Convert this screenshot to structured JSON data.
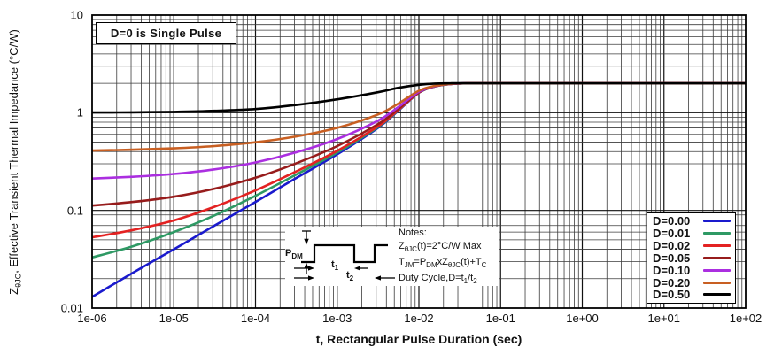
{
  "annotation": "D=0 is Single Pulse",
  "x_axis": {
    "title": "t, Rectangular Pulse Duration (sec)",
    "ticks": [
      "1e-06",
      "1e-05",
      "1e-04",
      "1e-03",
      "1e-02",
      "1e-01",
      "1e+00",
      "1e+01",
      "1e+02"
    ]
  },
  "y_axis": {
    "title_main": "Z",
    "title_sub": "θJC",
    "title_rest": ", Effective Transient Thermal Impedance (°C/W)",
    "ticks": [
      "10",
      "1",
      "0.1",
      "0.01"
    ]
  },
  "legend": {
    "items": [
      {
        "label": "D=0.00",
        "color": "#1a1acd"
      },
      {
        "label": "D=0.01",
        "color": "#2e9964"
      },
      {
        "label": "D=0.02",
        "color": "#e32222"
      },
      {
        "label": "D=0.05",
        "color": "#971c1c"
      },
      {
        "label": "D=0.10",
        "color": "#ab2fe0"
      },
      {
        "label": "D=0.20",
        "color": "#c85f22"
      },
      {
        "label": "D=0.50",
        "color": "#000000"
      }
    ]
  },
  "waveform": {
    "p_main": "P",
    "p_sub": "DM",
    "t1_main": "t",
    "t1_sub": "1",
    "t2_main": "t",
    "t2_sub": "2"
  },
  "notes": {
    "heading": "Notes:",
    "line1": {
      "a": "Z",
      "a_sub": "θJC",
      "b": "(t)=2°C/W Max"
    },
    "line2": {
      "a": "T",
      "a_sub": "JM",
      "b": "=P",
      "b_sub": "DM",
      "c": "xZ",
      "c_sub": "θJC",
      "d": "(t)+T",
      "d_sub": "C"
    },
    "line3": {
      "a": "Duty Cycle,D=t",
      "a_sub": "1",
      "b": "/t",
      "b_sub": "2"
    }
  },
  "chart_data": {
    "type": "line",
    "log_x": true,
    "log_y": true,
    "x_range": [
      1e-06,
      100
    ],
    "y_range": [
      0.01,
      10
    ],
    "grid": "log-log major and minor, black",
    "legend_position": "lower right",
    "title": "D=0 is Single Pulse",
    "xlabel": "t, Rectangular Pulse Duration (sec)",
    "ylabel": "ZθJC, Effective Transient Thermal Impedance (°C/W)",
    "x": [
      1e-06,
      3.16e-06,
      1e-05,
      3.16e-05,
      0.0001,
      0.000316,
      0.001,
      0.00316,
      0.00562,
      0.01,
      0.0158,
      0.0251,
      0.0398,
      0.1,
      1,
      10,
      100
    ],
    "series": [
      {
        "name": "D=0.00",
        "color": "#1a1acd",
        "values": [
          0.013,
          0.023,
          0.04,
          0.07,
          0.122,
          0.215,
          0.375,
          0.7,
          1.05,
          1.6,
          1.86,
          1.97,
          2.0,
          2.0,
          2.0,
          2.0,
          2.0
        ]
      },
      {
        "name": "D=0.01",
        "color": "#2e9964",
        "values": [
          0.033,
          0.043,
          0.06,
          0.089,
          0.141,
          0.233,
          0.391,
          0.713,
          1.06,
          1.604,
          1.861,
          1.97,
          2.0,
          2.0,
          2.0,
          2.0,
          2.0
        ]
      },
      {
        "name": "D=0.02",
        "color": "#e32222",
        "values": [
          0.053,
          0.063,
          0.079,
          0.109,
          0.16,
          0.251,
          0.408,
          0.726,
          1.069,
          1.608,
          1.863,
          1.971,
          2.0,
          2.0,
          2.0,
          2.0,
          2.0
        ]
      },
      {
        "name": "D=0.05",
        "color": "#971c1c",
        "values": [
          0.112,
          0.122,
          0.138,
          0.167,
          0.216,
          0.304,
          0.456,
          0.765,
          1.098,
          1.62,
          1.867,
          1.972,
          2.0,
          2.0,
          2.0,
          2.0,
          2.0
        ]
      },
      {
        "name": "D=0.10",
        "color": "#ab2fe0",
        "values": [
          0.212,
          0.221,
          0.236,
          0.263,
          0.31,
          0.394,
          0.538,
          0.83,
          1.145,
          1.64,
          1.874,
          1.973,
          2.0,
          2.0,
          2.0,
          2.0,
          2.0
        ]
      },
      {
        "name": "D=0.20",
        "color": "#c85f22",
        "values": [
          0.41,
          0.418,
          0.432,
          0.456,
          0.498,
          0.572,
          0.7,
          0.96,
          1.24,
          1.68,
          1.888,
          1.976,
          2.0,
          2.0,
          2.0,
          2.0,
          2.0
        ]
      },
      {
        "name": "D=0.50",
        "color": "#000000",
        "values": [
          1.005,
          1.01,
          1.02,
          1.045,
          1.09,
          1.2,
          1.37,
          1.62,
          1.8,
          1.93,
          1.99,
          2.0,
          2.0,
          2.0,
          2.0,
          2.0,
          2.0
        ]
      }
    ]
  }
}
